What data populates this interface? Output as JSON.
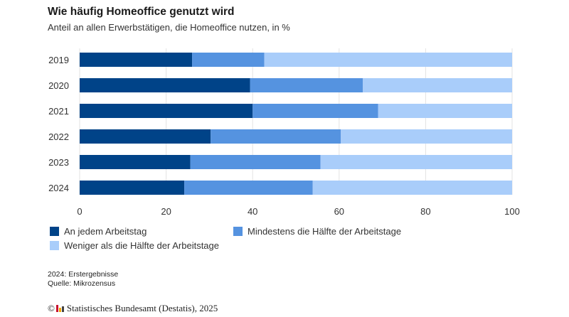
{
  "header": {
    "title": "Wie häufig Homeoffice genutzt wird",
    "subtitle": "Anteil an allen Erwerbstätigen, die Homeoffice nutzen, in %"
  },
  "colors": {
    "dark": "#004388",
    "mid": "#5593e0",
    "light": "#a9cdfa",
    "grid": "#e3e3e3"
  },
  "chart_data": {
    "type": "bar",
    "orientation": "horizontal",
    "stacked": true,
    "title": "Wie häufig Homeoffice genutzt wird",
    "subtitle": "Anteil an allen Erwerbstätigen, die Homeoffice nutzen, in %",
    "categories": [
      "2019",
      "2020",
      "2021",
      "2022",
      "2023",
      "2024"
    ],
    "series": [
      {
        "name": "An jedem Arbeitstag",
        "color": "#004388",
        "values": [
          26.0,
          39.4,
          40.0,
          30.3,
          25.6,
          24.2
        ]
      },
      {
        "name": "Mindestens die Hälfte der Arbeitstage",
        "color": "#5593e0",
        "values": [
          16.7,
          26.1,
          29.0,
          30.1,
          30.1,
          29.7
        ]
      },
      {
        "name": "Weniger als die Hälfte der Arbeitstage",
        "color": "#a9cdfa",
        "values": [
          57.3,
          34.5,
          31.0,
          39.6,
          44.3,
          46.1
        ]
      }
    ],
    "xlabel": "",
    "ylabel": "",
    "xlim": [
      0,
      100
    ],
    "xticks": [
      "0",
      "20",
      "40",
      "60",
      "80",
      "100"
    ],
    "grid": true,
    "legend_position": "bottom"
  },
  "legend": {
    "items": [
      {
        "label": "An jedem Arbeitstag",
        "color": "#004388"
      },
      {
        "label": "Mindestens die Hälfte der Arbeitstage",
        "color": "#5593e0"
      },
      {
        "label": "Weniger als die Hälfte der Arbeitstage",
        "color": "#a9cdfa"
      }
    ]
  },
  "footer": {
    "note": "2024: Erstergebnisse",
    "source": "Quelle: Mikrozensus",
    "copyright_symbol": "©",
    "copyright_text": "Statistisches Bundesamt (Destatis), 2025"
  }
}
